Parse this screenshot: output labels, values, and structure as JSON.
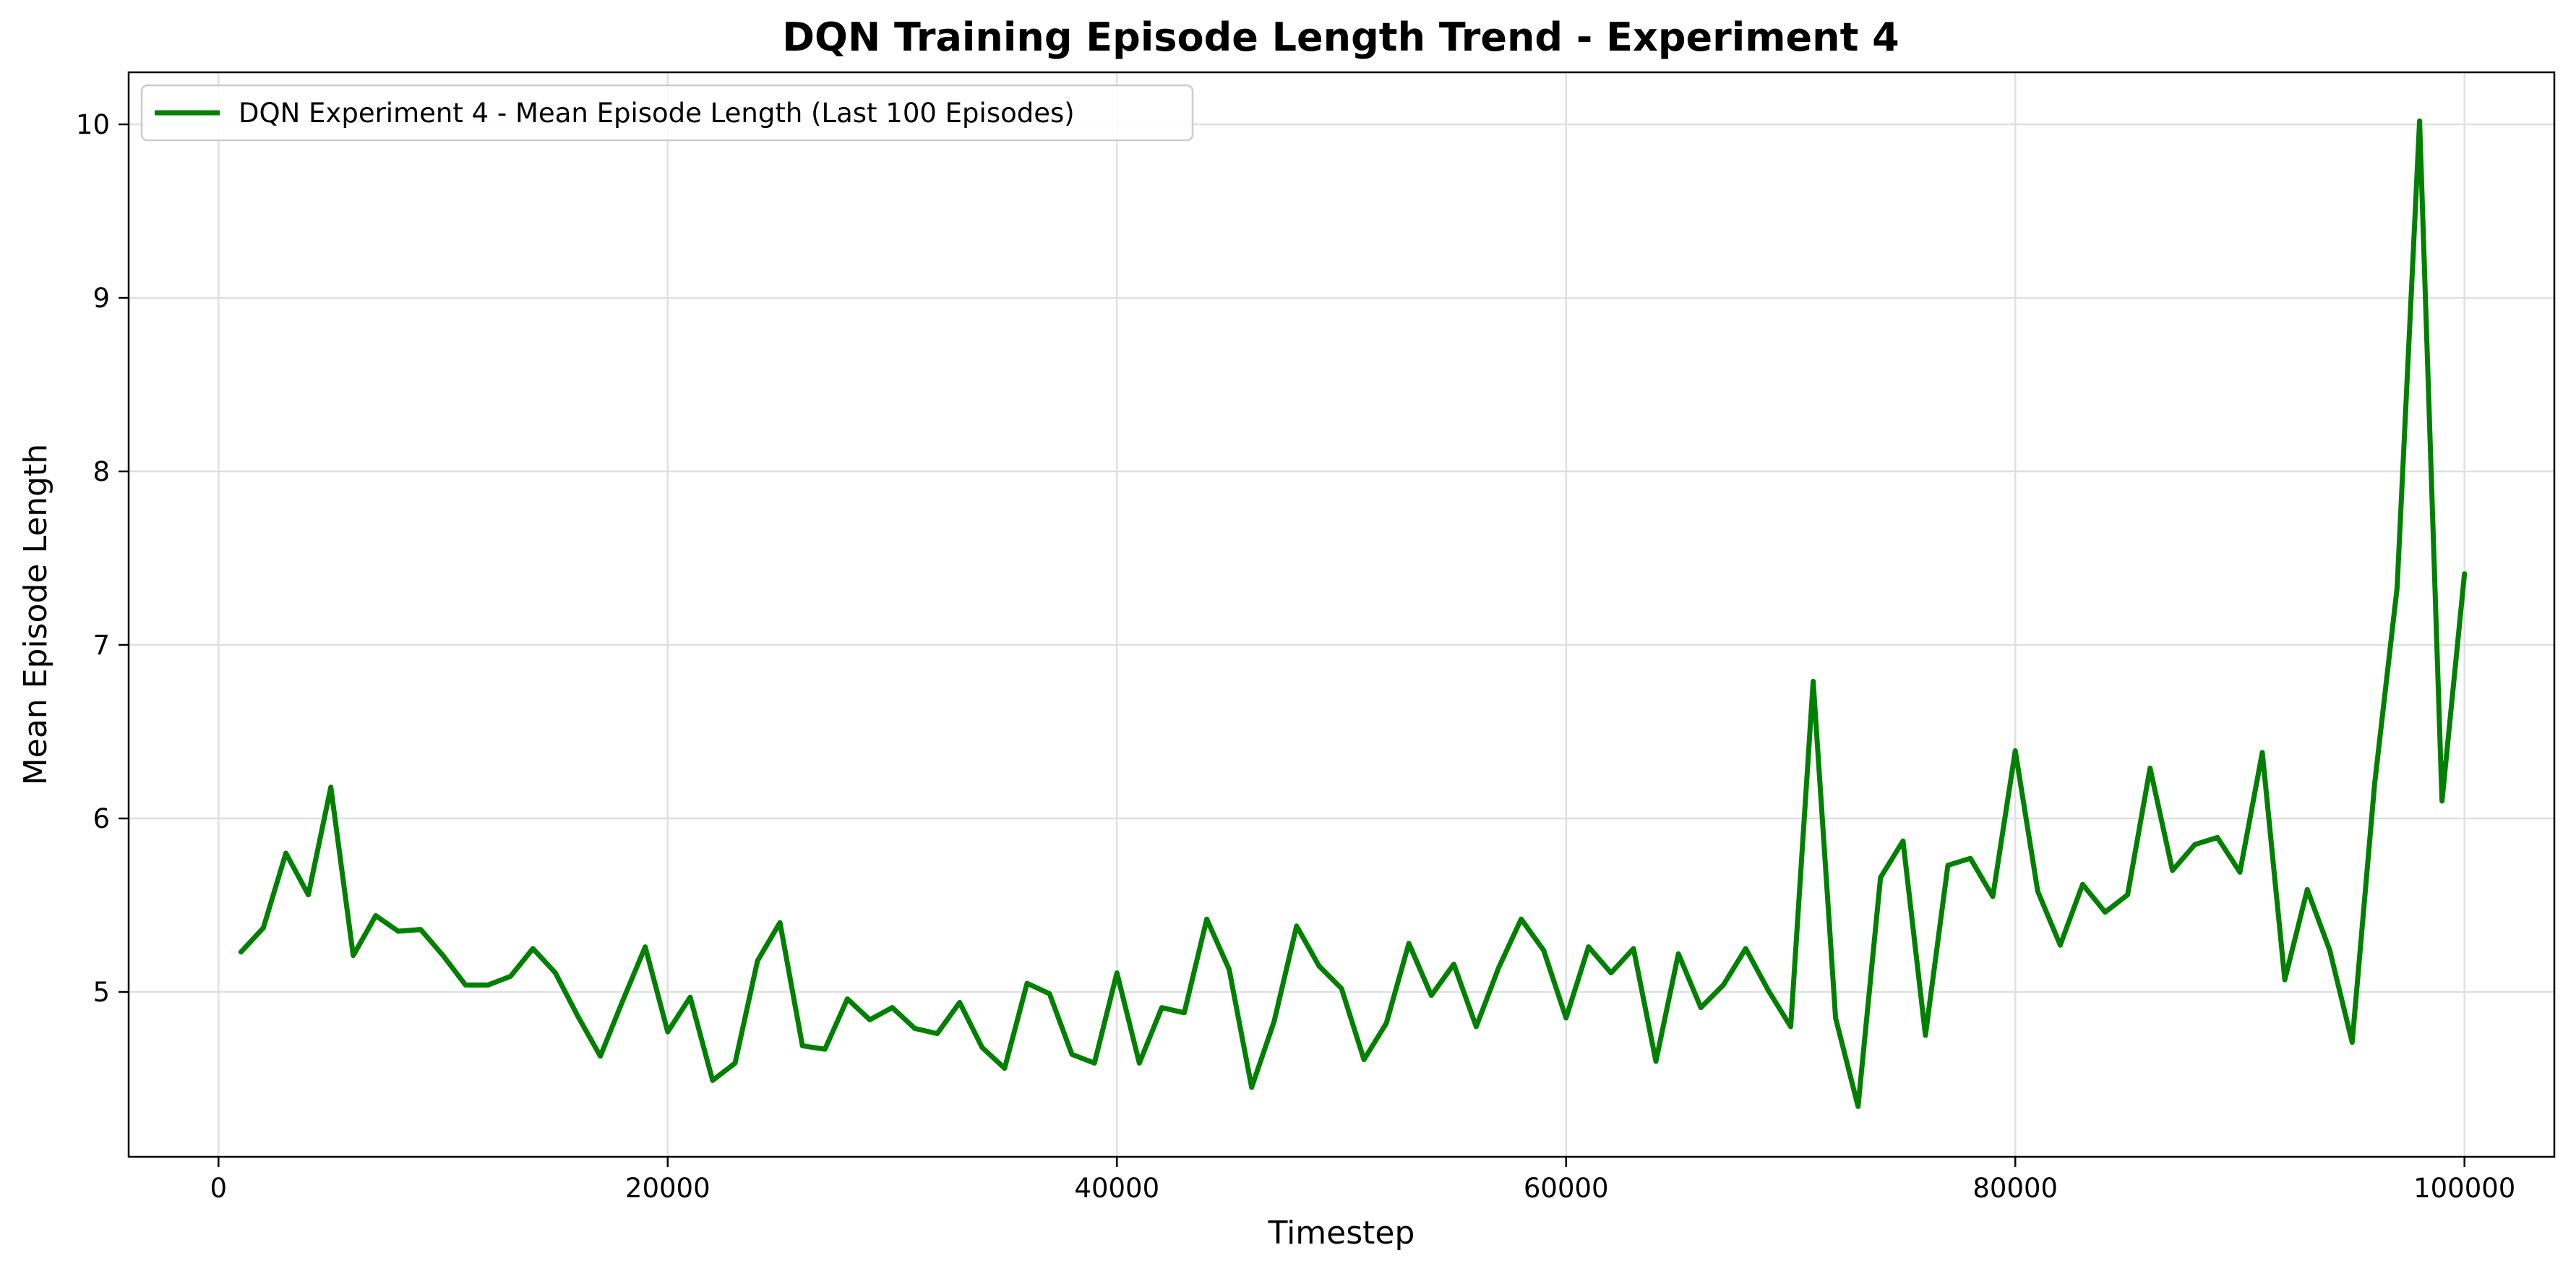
{
  "chart_data": {
    "type": "line",
    "title": "DQN Training Episode Length Trend - Experiment 4",
    "xlabel": "Timestep",
    "ylabel": "Mean Episode Length",
    "xlim": [
      -4000,
      104000
    ],
    "ylim": [
      4.05,
      10.3
    ],
    "xticks": [
      0,
      20000,
      40000,
      60000,
      80000,
      100000
    ],
    "yticks": [
      5,
      6,
      7,
      8,
      9,
      10
    ],
    "xtick_labels": [
      "0",
      "20000",
      "40000",
      "60000",
      "80000",
      "100000"
    ],
    "ytick_labels": [
      "5",
      "6",
      "7",
      "8",
      "9",
      "10"
    ],
    "grid": true,
    "legend_position": "upper-left",
    "colors": {
      "series": "#008000",
      "grid": "#e0e0e0",
      "axes": "#000000"
    },
    "series": [
      {
        "name": "DQN Experiment 4 - Mean Episode Length (Last 100 Episodes)",
        "x": [
          1000,
          2000,
          3000,
          4000,
          5000,
          6000,
          7000,
          8000,
          9000,
          10000,
          11000,
          12000,
          13000,
          14000,
          15000,
          16000,
          17000,
          18000,
          19000,
          20000,
          21000,
          22000,
          23000,
          24000,
          25000,
          26000,
          27000,
          28000,
          29000,
          30000,
          31000,
          32000,
          33000,
          34000,
          35000,
          36000,
          37000,
          38000,
          39000,
          40000,
          41000,
          42000,
          43000,
          44000,
          45000,
          46000,
          47000,
          48000,
          49000,
          50000,
          51000,
          52000,
          53000,
          54000,
          55000,
          56000,
          57000,
          58000,
          59000,
          60000,
          61000,
          62000,
          63000,
          64000,
          65000,
          66000,
          67000,
          68000,
          69000,
          70000,
          71000,
          72000,
          73000,
          74000,
          75000,
          76000,
          77000,
          78000,
          79000,
          80000,
          81000,
          82000,
          83000,
          84000,
          85000,
          86000,
          87000,
          88000,
          89000,
          90000,
          91000,
          92000,
          93000,
          94000,
          95000,
          96000,
          97000,
          98000,
          99000,
          100000
        ],
        "y": [
          5.23,
          5.37,
          5.8,
          5.56,
          6.18,
          5.21,
          5.44,
          5.35,
          5.36,
          5.21,
          5.04,
          5.04,
          5.09,
          5.25,
          5.11,
          4.86,
          4.63,
          4.95,
          5.26,
          4.77,
          4.97,
          4.49,
          4.59,
          5.18,
          5.4,
          4.69,
          4.67,
          4.96,
          4.84,
          4.91,
          4.79,
          4.76,
          4.94,
          4.68,
          4.56,
          5.05,
          4.99,
          4.64,
          4.59,
          5.11,
          4.59,
          4.91,
          4.88,
          5.42,
          5.13,
          4.45,
          4.83,
          5.38,
          5.15,
          5.02,
          4.61,
          4.82,
          5.28,
          4.98,
          5.16,
          4.8,
          5.14,
          5.42,
          5.24,
          4.85,
          5.26,
          5.11,
          5.25,
          4.6,
          5.22,
          4.91,
          5.04,
          5.25,
          5.01,
          4.8,
          6.79,
          4.85,
          4.34,
          5.66,
          5.87,
          4.75,
          5.73,
          5.77,
          5.55,
          6.39,
          5.58,
          5.27,
          5.62,
          5.46,
          5.56,
          6.29,
          5.7,
          5.85,
          5.89,
          5.69,
          6.38,
          5.07,
          5.59,
          5.24,
          4.71,
          6.2,
          7.33,
          10.02,
          6.1,
          7.41
        ]
      }
    ]
  }
}
